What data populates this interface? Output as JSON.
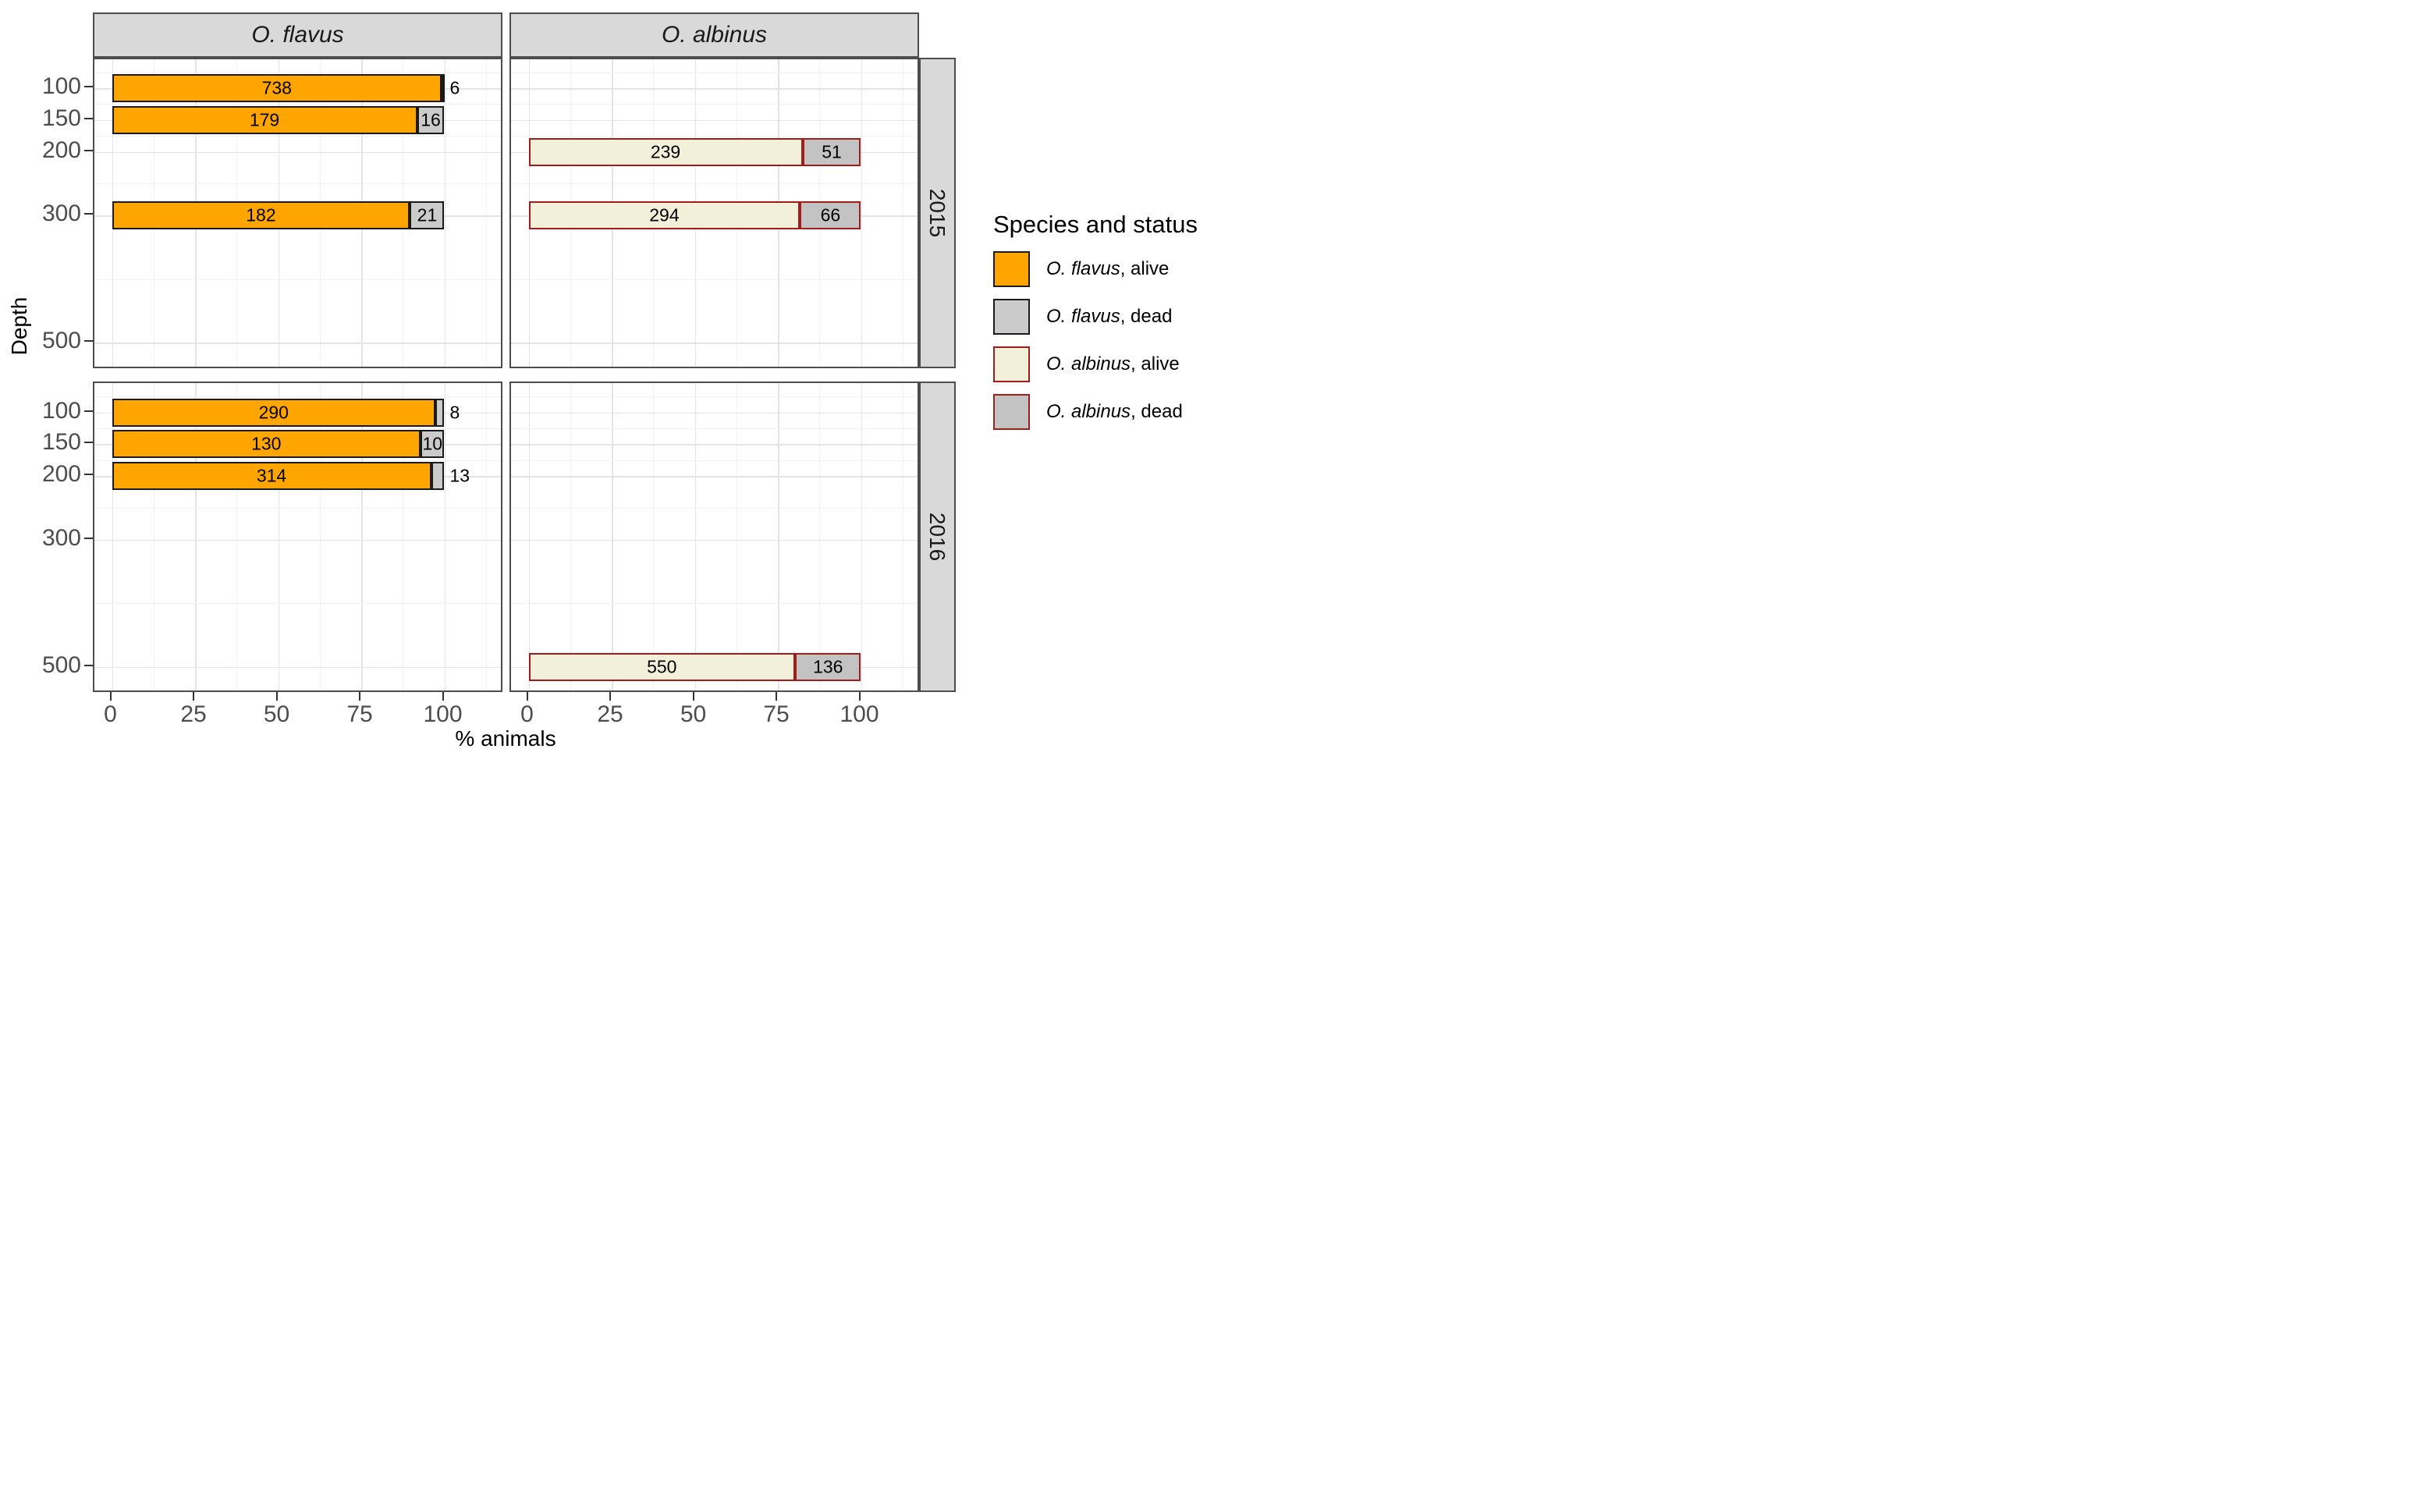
{
  "chart_data": {
    "type": "bar",
    "orientation": "horizontal",
    "stacked": true,
    "units": "percent of animals per depth, stacked to 100%",
    "facet_columns": [
      "O. flavus",
      "O. albinus"
    ],
    "facet_rows": [
      "2015",
      "2016"
    ],
    "x_axis": {
      "title": "% animals",
      "ticks": [
        0,
        25,
        50,
        75,
        100
      ],
      "minor_gridlines": [
        12.5,
        37.5,
        62.5,
        87.5,
        112.5
      ],
      "range": [
        -5,
        122
      ]
    },
    "y_axis": {
      "title": "Depth",
      "ticks": [
        100,
        150,
        200,
        300,
        500
      ],
      "minor_gridlines": [
        75,
        125,
        175,
        250,
        400
      ],
      "range": [
        54,
        542
      ],
      "reversed": true
    },
    "facets": [
      {
        "species": "O. flavus",
        "year": "2015",
        "bars": [
          {
            "depth": 100,
            "alive": 738,
            "dead": 6,
            "dead_label_position": "outside"
          },
          {
            "depth": 150,
            "alive": 179,
            "dead": 16,
            "dead_label_position": "inside"
          },
          {
            "depth": 300,
            "alive": 182,
            "dead": 21,
            "dead_label_position": "inside"
          }
        ]
      },
      {
        "species": "O. albinus",
        "year": "2015",
        "bars": [
          {
            "depth": 200,
            "alive": 239,
            "dead": 51,
            "dead_label_position": "inside"
          },
          {
            "depth": 300,
            "alive": 294,
            "dead": 66,
            "dead_label_position": "inside"
          }
        ]
      },
      {
        "species": "O. flavus",
        "year": "2016",
        "bars": [
          {
            "depth": 100,
            "alive": 290,
            "dead": 8,
            "dead_label_position": "outside"
          },
          {
            "depth": 150,
            "alive": 130,
            "dead": 10,
            "dead_label_position": "inside"
          },
          {
            "depth": 200,
            "alive": 314,
            "dead": 13,
            "dead_label_position": "outside"
          }
        ]
      },
      {
        "species": "O. albinus",
        "year": "2016",
        "bars": [
          {
            "depth": 500,
            "alive": 550,
            "dead": 136,
            "dead_label_position": "inside"
          }
        ]
      }
    ],
    "colors": {
      "flavus_alive_fill": "#FFA500",
      "flavus_border": "#1A1A1A",
      "flavus_dead_fill": "#CBCBCB",
      "albinus_alive_fill": "#F3F0DA",
      "albinus_border": "#A31C1C",
      "albinus_dead_fill": "#C3C3C3",
      "strip_fill": "#D9D9D9",
      "panel_border": "#4D4D4D",
      "grid_major": "#E4E4E4",
      "grid_minor": "#F2F2F2",
      "tick_label": "#4D4D4D"
    },
    "grid": "major and minor, light gray on white",
    "legend_position": "right"
  },
  "legend": {
    "title": "Species and status",
    "items": [
      {
        "species": "O. flavus",
        "status": ", alive",
        "fill": "#FFA500",
        "border": "#1A1A1A"
      },
      {
        "species": "O. flavus",
        "status": ", dead",
        "fill": "#CBCBCB",
        "border": "#1A1A1A"
      },
      {
        "species": "O. albinus",
        "status": ", alive",
        "fill": "#F3F0DA",
        "border": "#A31C1C"
      },
      {
        "species": "O. albinus",
        "status": ", dead",
        "fill": "#C3C3C3",
        "border": "#A31C1C"
      }
    ]
  }
}
